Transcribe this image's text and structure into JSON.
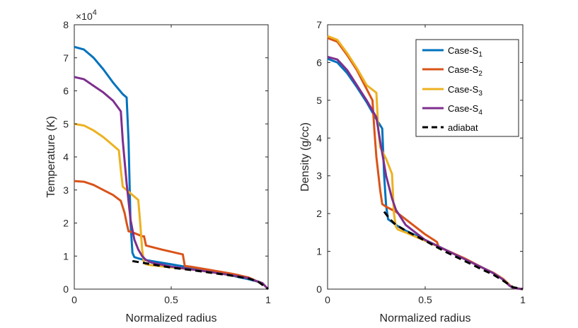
{
  "colors": {
    "case1": "#0072BD",
    "case2": "#D95319",
    "case3": "#EDB120",
    "case4": "#7E2F8E",
    "adiabat": "#000000",
    "axis": "#262626"
  },
  "legend": {
    "case1_base": "Case-S",
    "case1_sub": "1",
    "case2_base": "Case-S",
    "case2_sub": "2",
    "case3_base": "Case-S",
    "case3_sub": "3",
    "case4_base": "Case-S",
    "case4_sub": "4",
    "adiabat": "adiabat"
  },
  "chart_data": [
    {
      "type": "line",
      "xlabel": "Normalized radius",
      "ylabel": "Temperature (K)",
      "multiplier_base": "×10",
      "multiplier_exp": "4",
      "xlim": [
        0,
        1
      ],
      "ylim": [
        0,
        8
      ],
      "xticks": [
        0,
        0.5,
        1
      ],
      "xtick_labels": [
        "0",
        "0.5",
        "1"
      ],
      "yticks": [
        0,
        1,
        2,
        3,
        4,
        5,
        6,
        7,
        8
      ],
      "ytick_labels": [
        "0",
        "1",
        "2",
        "3",
        "4",
        "5",
        "6",
        "7",
        "8"
      ],
      "series": [
        {
          "name": "Case-S1",
          "color_key": "case1",
          "x": [
            0,
            0.05,
            0.1,
            0.15,
            0.2,
            0.25,
            0.27,
            0.28,
            0.29,
            0.3,
            0.31,
            0.33,
            0.35,
            0.4,
            0.5,
            0.6,
            0.7,
            0.8,
            0.85,
            0.9,
            0.95,
            0.97,
            1.0
          ],
          "y": [
            7.33,
            7.25,
            7.0,
            6.65,
            6.25,
            5.9,
            5.8,
            4.5,
            2.0,
            1.1,
            0.97,
            0.93,
            0.9,
            0.85,
            0.75,
            0.65,
            0.55,
            0.43,
            0.36,
            0.3,
            0.22,
            0.18,
            0.0
          ]
        },
        {
          "name": "Case-S2",
          "color_key": "case2",
          "x": [
            0,
            0.05,
            0.1,
            0.15,
            0.2,
            0.24,
            0.26,
            0.27,
            0.28,
            0.3,
            0.35,
            0.36,
            0.37,
            0.45,
            0.56,
            0.57,
            0.6,
            0.7,
            0.8,
            0.85,
            0.9,
            0.95,
            0.97,
            1.0
          ],
          "y": [
            3.27,
            3.25,
            3.15,
            3.0,
            2.85,
            2.67,
            2.3,
            2.0,
            1.75,
            1.72,
            1.6,
            1.6,
            1.32,
            1.2,
            1.05,
            0.7,
            0.68,
            0.58,
            0.48,
            0.42,
            0.35,
            0.22,
            0.18,
            0.0
          ]
        },
        {
          "name": "Case-S3",
          "color_key": "case3",
          "x": [
            0,
            0.05,
            0.1,
            0.15,
            0.2,
            0.23,
            0.24,
            0.25,
            0.3,
            0.33,
            0.34,
            0.35,
            0.36,
            0.37,
            0.4,
            0.5,
            0.6,
            0.7,
            0.8,
            0.9,
            0.95,
            0.97,
            1.0
          ],
          "y": [
            5.0,
            4.95,
            4.8,
            4.6,
            4.35,
            4.2,
            3.6,
            3.1,
            2.85,
            2.7,
            2.0,
            1.2,
            0.8,
            0.75,
            0.72,
            0.66,
            0.6,
            0.52,
            0.43,
            0.33,
            0.22,
            0.18,
            0.0
          ]
        },
        {
          "name": "Case-S4",
          "color_key": "case4",
          "x": [
            0,
            0.05,
            0.1,
            0.15,
            0.2,
            0.24,
            0.25,
            0.27,
            0.29,
            0.31,
            0.33,
            0.35,
            0.37,
            0.4,
            0.5,
            0.6,
            0.7,
            0.8,
            0.9,
            0.95,
            0.97,
            1.0
          ],
          "y": [
            6.42,
            6.35,
            6.15,
            5.95,
            5.7,
            5.38,
            4.5,
            3.2,
            2.1,
            1.5,
            1.2,
            1.0,
            0.88,
            0.8,
            0.68,
            0.6,
            0.52,
            0.43,
            0.33,
            0.22,
            0.18,
            0.0
          ]
        },
        {
          "name": "adiabat",
          "color_key": "adiabat",
          "dashed": true,
          "x": [
            0.3,
            0.4,
            0.5,
            0.6,
            0.7,
            0.8,
            0.9,
            0.95,
            1.0
          ],
          "y": [
            0.85,
            0.75,
            0.65,
            0.58,
            0.5,
            0.42,
            0.32,
            0.22,
            0.0
          ]
        }
      ]
    },
    {
      "type": "line",
      "xlabel": "Normalized radius",
      "ylabel": "Density (g/cc)",
      "xlim": [
        0,
        1
      ],
      "ylim": [
        0,
        7
      ],
      "xticks": [
        0,
        0.5,
        1
      ],
      "xtick_labels": [
        "0",
        "0.5",
        "1"
      ],
      "yticks": [
        0,
        1,
        2,
        3,
        4,
        5,
        6,
        7
      ],
      "ytick_labels": [
        "0",
        "1",
        "2",
        "3",
        "4",
        "5",
        "6",
        "7"
      ],
      "legend_location": "top-right",
      "series": [
        {
          "name": "Case-S1",
          "color_key": "case1",
          "x": [
            0,
            0.05,
            0.1,
            0.15,
            0.2,
            0.25,
            0.28,
            0.29,
            0.3,
            0.31,
            0.33,
            0.35,
            0.4,
            0.5,
            0.6,
            0.7,
            0.8,
            0.85,
            0.9,
            0.93,
            0.95,
            1.0
          ],
          "y": [
            6.1,
            6.0,
            5.72,
            5.35,
            4.95,
            4.5,
            4.25,
            3.0,
            2.2,
            1.85,
            1.78,
            1.7,
            1.55,
            1.3,
            1.05,
            0.8,
            0.55,
            0.42,
            0.25,
            0.1,
            0.03,
            0.0
          ]
        },
        {
          "name": "Case-S2",
          "color_key": "case2",
          "x": [
            0,
            0.05,
            0.1,
            0.15,
            0.2,
            0.23,
            0.24,
            0.25,
            0.27,
            0.28,
            0.3,
            0.35,
            0.4,
            0.5,
            0.56,
            0.57,
            0.6,
            0.7,
            0.8,
            0.85,
            0.9,
            0.93,
            0.95,
            1.0
          ],
          "y": [
            6.65,
            6.55,
            6.2,
            5.8,
            5.3,
            5.0,
            4.2,
            3.5,
            2.6,
            2.25,
            2.18,
            2.05,
            1.85,
            1.45,
            1.25,
            1.1,
            1.05,
            0.82,
            0.55,
            0.43,
            0.27,
            0.12,
            0.03,
            0.0
          ]
        },
        {
          "name": "Case-S3",
          "color_key": "case3",
          "x": [
            0,
            0.05,
            0.1,
            0.15,
            0.2,
            0.25,
            0.26,
            0.27,
            0.3,
            0.33,
            0.34,
            0.35,
            0.36,
            0.4,
            0.5,
            0.6,
            0.7,
            0.8,
            0.85,
            0.9,
            0.93,
            0.95,
            1.0
          ],
          "y": [
            6.7,
            6.6,
            6.25,
            5.85,
            5.4,
            5.2,
            4.2,
            3.75,
            3.45,
            3.05,
            2.0,
            1.65,
            1.58,
            1.5,
            1.28,
            1.05,
            0.8,
            0.55,
            0.42,
            0.26,
            0.11,
            0.03,
            0.0
          ]
        },
        {
          "name": "Case-S4",
          "color_key": "case4",
          "x": [
            0,
            0.05,
            0.1,
            0.15,
            0.2,
            0.25,
            0.27,
            0.3,
            0.33,
            0.35,
            0.4,
            0.5,
            0.6,
            0.7,
            0.8,
            0.85,
            0.9,
            0.93,
            0.95,
            1.0
          ],
          "y": [
            6.15,
            6.08,
            5.8,
            5.4,
            5.0,
            4.55,
            3.9,
            3.0,
            2.4,
            2.1,
            1.7,
            1.3,
            1.05,
            0.8,
            0.55,
            0.42,
            0.25,
            0.1,
            0.03,
            0.0
          ]
        },
        {
          "name": "adiabat",
          "color_key": "adiabat",
          "dashed": true,
          "x": [
            0.29,
            0.32,
            0.35,
            0.4,
            0.5,
            0.6,
            0.7,
            0.8,
            0.85,
            0.9,
            0.95,
            1.0
          ],
          "y": [
            2.05,
            1.85,
            1.7,
            1.55,
            1.28,
            1.0,
            0.75,
            0.5,
            0.38,
            0.22,
            0.05,
            0.0
          ]
        }
      ]
    }
  ]
}
